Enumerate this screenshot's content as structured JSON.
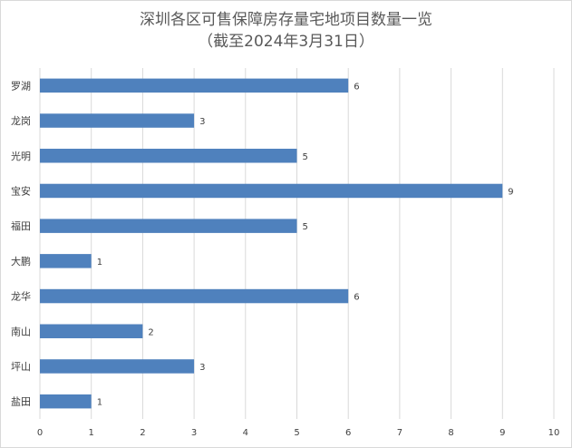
{
  "chart_data": {
    "type": "bar",
    "orientation": "horizontal",
    "title": "深圳各区可售保障房存量宅地项目数量一览",
    "subtitle": "（截至2024年3月31日）",
    "categories": [
      "罗湖",
      "龙岗",
      "光明",
      "宝安",
      "福田",
      "大鹏",
      "龙华",
      "南山",
      "坪山",
      "盐田"
    ],
    "values": [
      6,
      3,
      5,
      9,
      5,
      1,
      6,
      2,
      3,
      1
    ],
    "xlim": [
      0,
      10
    ],
    "x_ticks": [
      "0",
      "1",
      "2",
      "3",
      "4",
      "5",
      "6",
      "7",
      "8",
      "9",
      "10"
    ],
    "xlabel": "",
    "ylabel": "",
    "grid": "vertical",
    "legend": "none",
    "data_labels": true,
    "bar_color": "#4f81bd",
    "grid_color": "#d9d9d9",
    "text_color": "#404040"
  }
}
